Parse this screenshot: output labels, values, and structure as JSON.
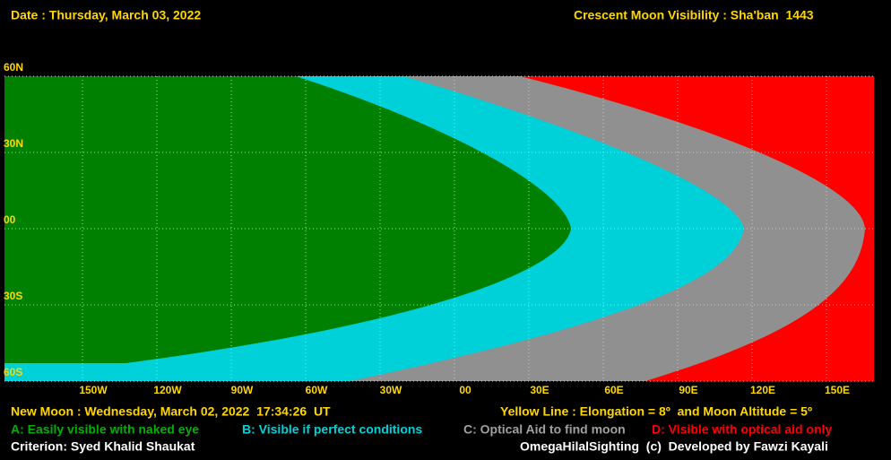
{
  "header": {
    "date": "Date : Thursday, March 03, 2022",
    "title": "Crescent Moon Visibility : Sha'ban  1443"
  },
  "map": {
    "lat_labels": [
      "60N",
      "30N",
      "00",
      "30S",
      "60S"
    ],
    "lon_labels": [
      "150W",
      "120W",
      "90W",
      "60W",
      "30W",
      "00",
      "30E",
      "60E",
      "90E",
      "120E",
      "150E"
    ]
  },
  "footer": {
    "new_moon": "New Moon : Wednesday, March 02, 2022  17:34:26  UT",
    "yellow_line": "Yellow Line : Elongation = 8º  and Moon Altitude = 5º",
    "criterion": "Criterion: Syed Khalid Shaukat",
    "credit": "OmegaHilalSighting  (c)  Developed by Fawzi Kayali"
  },
  "legend": [
    "A: Easily visible with naked eye",
    "B: Visible if perfect conditions",
    "C: Optical Aid to find moon",
    "D: Visible with optical aid only"
  ]
}
